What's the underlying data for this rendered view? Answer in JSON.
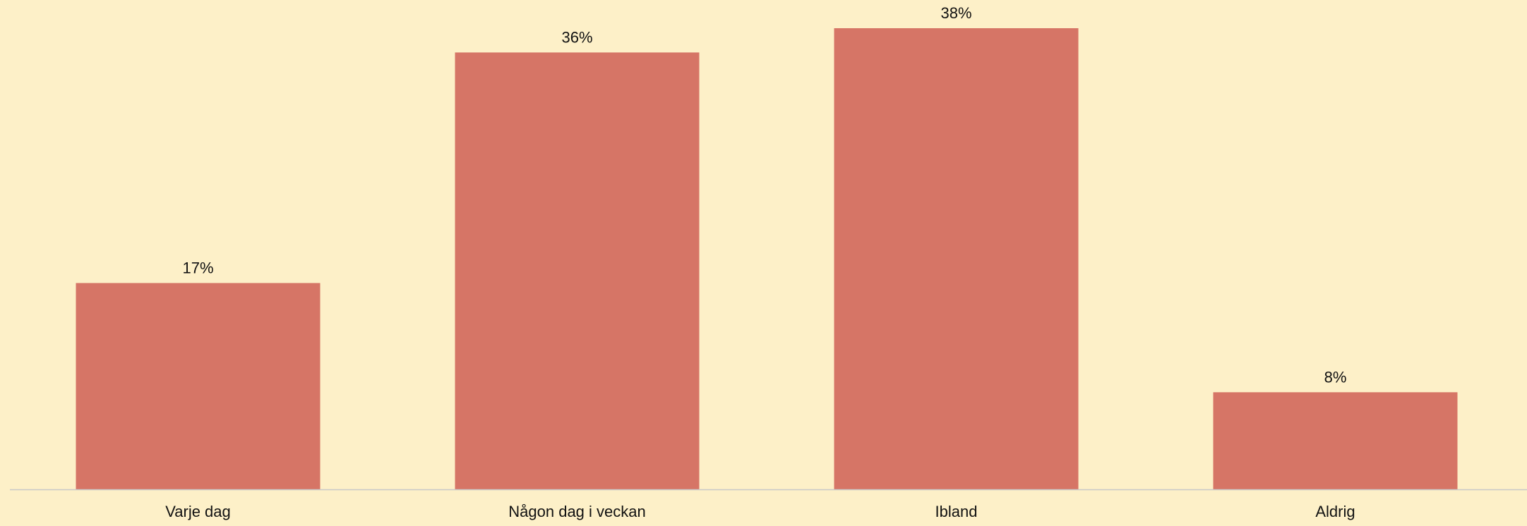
{
  "chart_data": {
    "type": "bar",
    "categories": [
      "Varje dag",
      "Någon dag i veckan",
      "Ibland",
      "Aldrig"
    ],
    "values": [
      17,
      36,
      38,
      8
    ],
    "value_labels": [
      "17%",
      "36%",
      "38%",
      "8%"
    ],
    "title": "",
    "xlabel": "",
    "ylabel": "",
    "ylim": [
      0,
      38
    ],
    "grid": false,
    "legend": "none"
  },
  "colors": {
    "background": "#fdf0c8",
    "bar": "#d67566",
    "axis": "#c8c8c8",
    "text": "#111111"
  }
}
